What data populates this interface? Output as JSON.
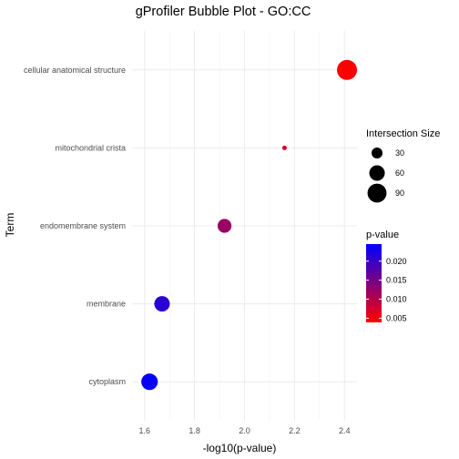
{
  "chart_data": {
    "type": "scatter",
    "title": "gProfiler Bubble Plot - GO:CC",
    "xlabel": "-log10(p-value)",
    "ylabel": "Term",
    "xlim": [
      1.55,
      2.45
    ],
    "x_ticks": [
      1.6,
      1.8,
      2.0,
      2.2,
      2.4
    ],
    "x_tick_labels": [
      "1.6",
      "1.8",
      "2.0",
      "2.2",
      "2.4"
    ],
    "grid": true,
    "categories": [
      "cellular anatomical structure",
      "mitochondrial crista",
      "endomembrane system",
      "membrane",
      "cytoplasm"
    ],
    "points": [
      {
        "term": "cellular anatomical structure",
        "x": 2.41,
        "size": 100,
        "pvalue": 0.0039
      },
      {
        "term": "mitochondrial crista",
        "x": 2.16,
        "size": 5,
        "pvalue": 0.0069
      },
      {
        "term": "endomembrane system",
        "x": 1.92,
        "size": 48,
        "pvalue": 0.012
      },
      {
        "term": "membrane",
        "x": 1.67,
        "size": 60,
        "pvalue": 0.021
      },
      {
        "term": "cytoplasm",
        "x": 1.62,
        "size": 68,
        "pvalue": 0.024
      }
    ],
    "size_legend": {
      "title": "Intersection Size",
      "values": [
        30,
        60,
        90
      ],
      "labels": [
        "30",
        "60",
        "90"
      ]
    },
    "color_legend": {
      "title": "p-value",
      "range": [
        0.0039,
        0.0245
      ],
      "ticks": [
        0.005,
        0.01,
        0.015,
        0.02
      ],
      "tick_labels": [
        "0.005",
        "0.010",
        "0.015",
        "0.020"
      ],
      "low_color": "#ff0000",
      "high_color": "#0000ff"
    },
    "legend_position": "right"
  }
}
